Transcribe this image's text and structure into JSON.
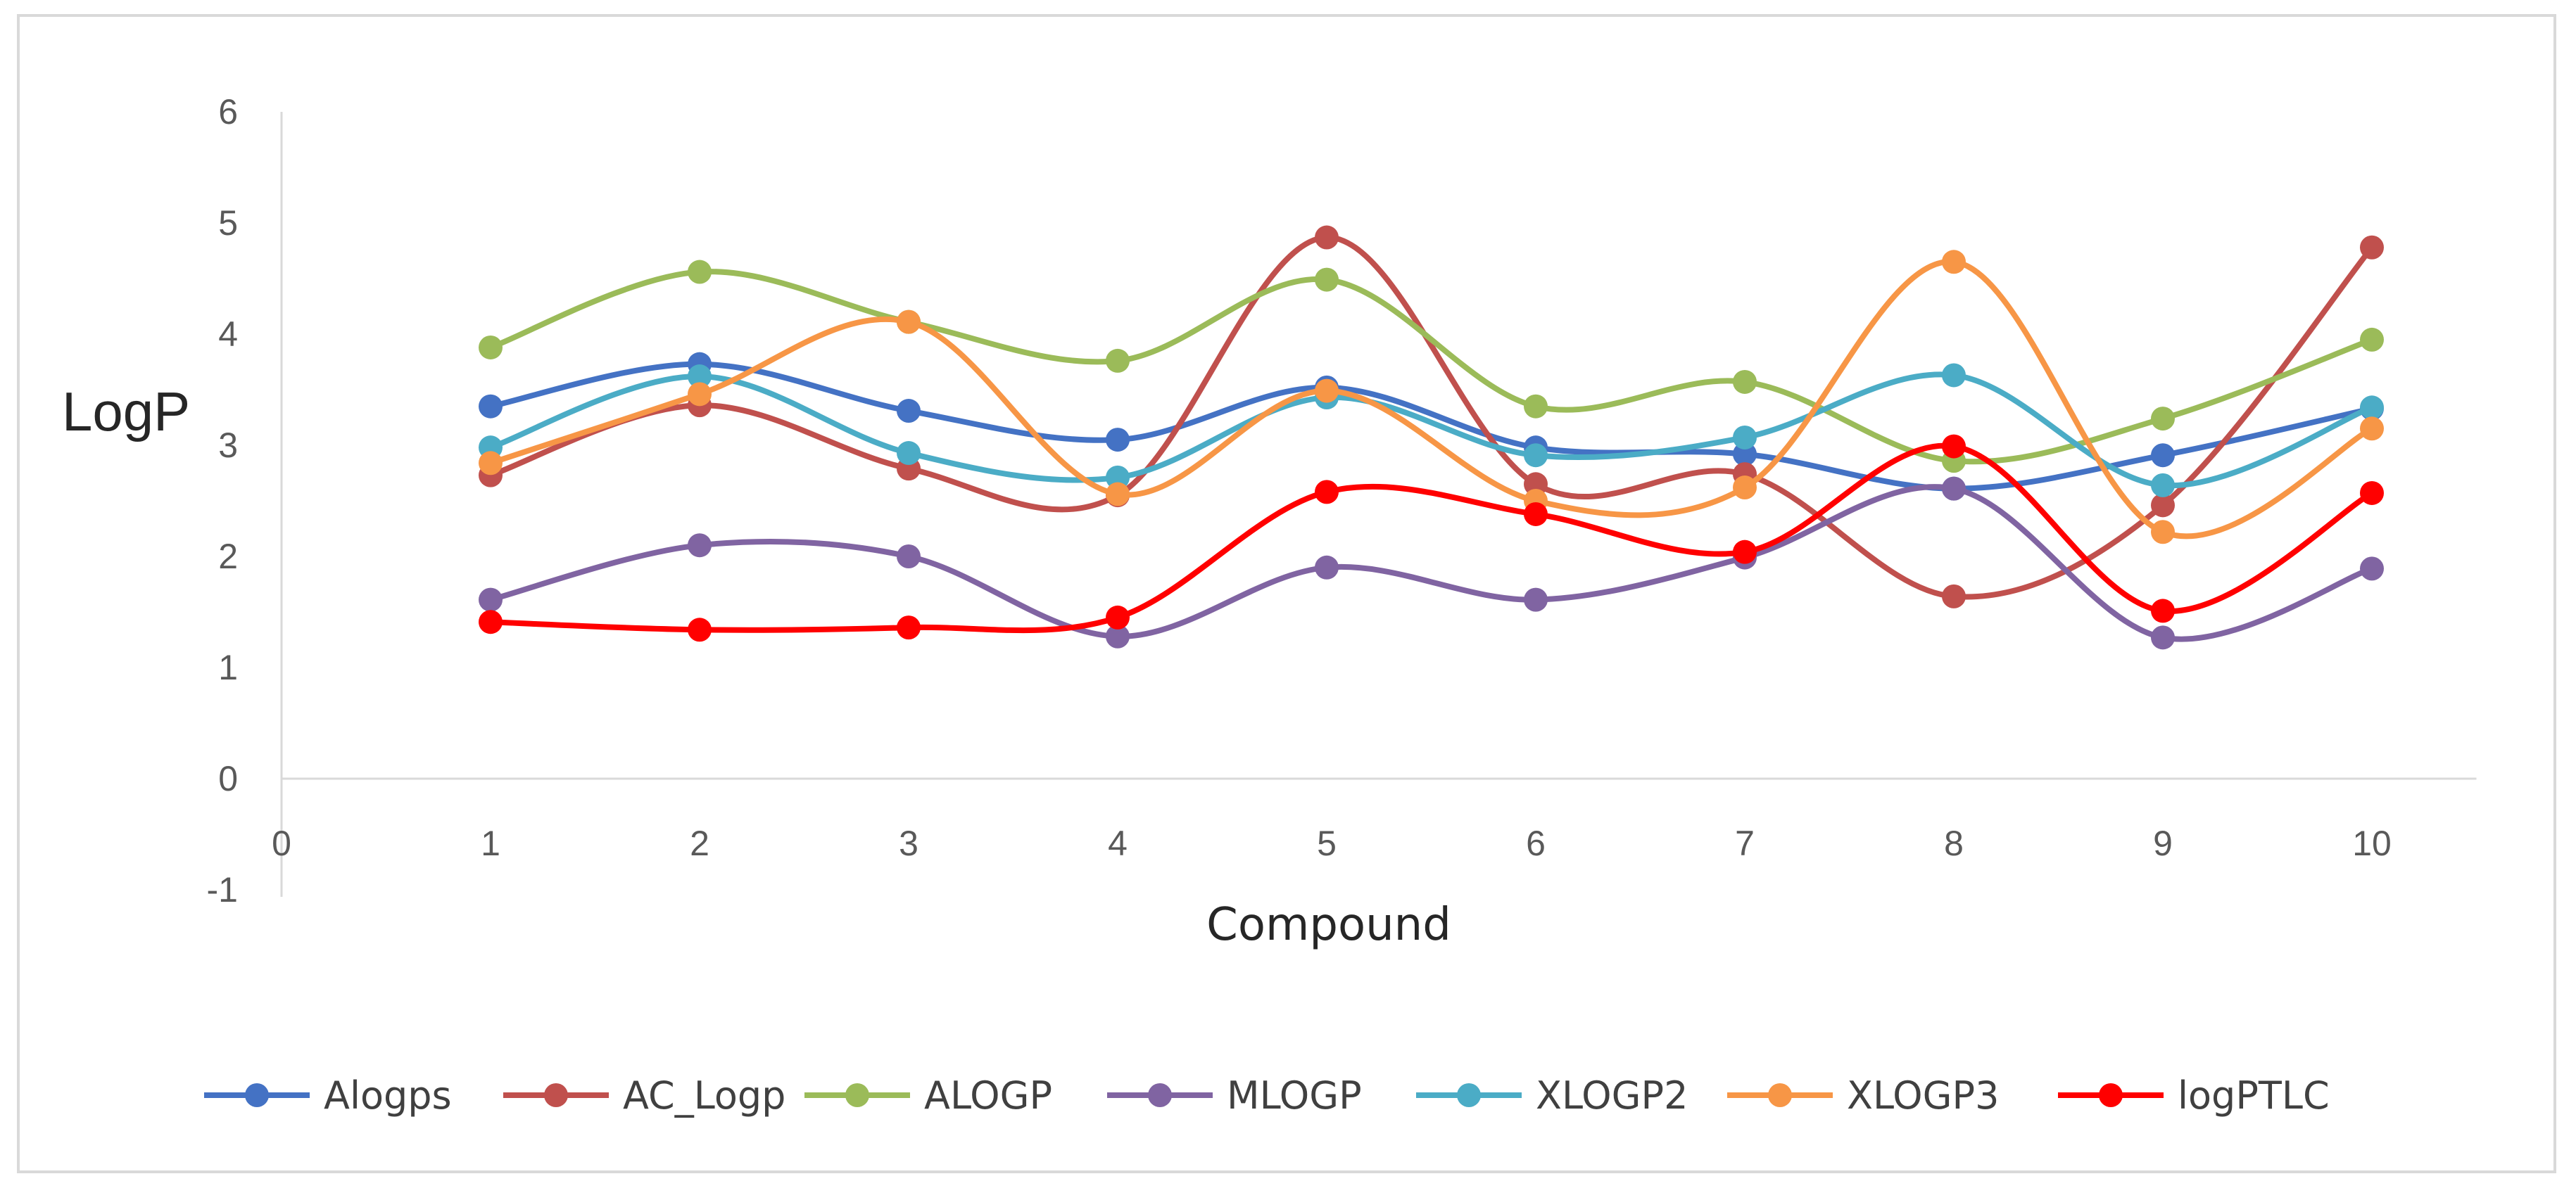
{
  "chart_data": {
    "type": "line",
    "smooth": true,
    "title": "",
    "xlabel": "Compound",
    "ylabel": "LogP",
    "xlim": [
      0,
      10.5
    ],
    "ylim": [
      -1,
      6
    ],
    "x_ticks": [
      "0",
      "1",
      "2",
      "3",
      "4",
      "5",
      "6",
      "7",
      "8",
      "9",
      "10"
    ],
    "y_ticks": [
      "-1",
      "0",
      "1",
      "2",
      "3",
      "4",
      "5",
      "6"
    ],
    "x": [
      1,
      2,
      3,
      4,
      5,
      6,
      7,
      8,
      9,
      10
    ],
    "grid": false,
    "legend_position": "bottom",
    "series": [
      {
        "name": "Alogps",
        "color": "#4472C4",
        "values": [
          3.35,
          3.73,
          3.31,
          3.05,
          3.52,
          2.98,
          2.92,
          2.61,
          2.91,
          3.33
        ]
      },
      {
        "name": "AC_Logp",
        "color": "#C0504D",
        "values": [
          2.73,
          3.36,
          2.79,
          2.55,
          4.87,
          2.65,
          2.74,
          1.64,
          2.46,
          4.78
        ]
      },
      {
        "name": "ALOGP",
        "color": "#9BBB59",
        "values": [
          3.88,
          4.56,
          4.11,
          3.76,
          4.49,
          3.35,
          3.57,
          2.86,
          3.24,
          3.95
        ]
      },
      {
        "name": "MLOGP",
        "color": "#8064A2",
        "values": [
          1.61,
          2.1,
          2.0,
          1.28,
          1.9,
          1.61,
          1.99,
          2.61,
          1.27,
          1.89
        ]
      },
      {
        "name": "XLOGP2",
        "color": "#4BACC6",
        "values": [
          2.98,
          3.62,
          2.93,
          2.71,
          3.43,
          2.91,
          3.07,
          3.63,
          2.64,
          3.34
        ]
      },
      {
        "name": "XLOGP3",
        "color": "#F79646",
        "values": [
          2.84,
          3.46,
          4.11,
          2.56,
          3.49,
          2.5,
          2.62,
          4.65,
          2.22,
          3.15
        ]
      },
      {
        "name": "logPTLC",
        "color": "#FF0000",
        "values": [
          1.41,
          1.34,
          1.36,
          1.45,
          2.58,
          2.38,
          2.04,
          2.99,
          1.51,
          2.57
        ]
      }
    ]
  }
}
